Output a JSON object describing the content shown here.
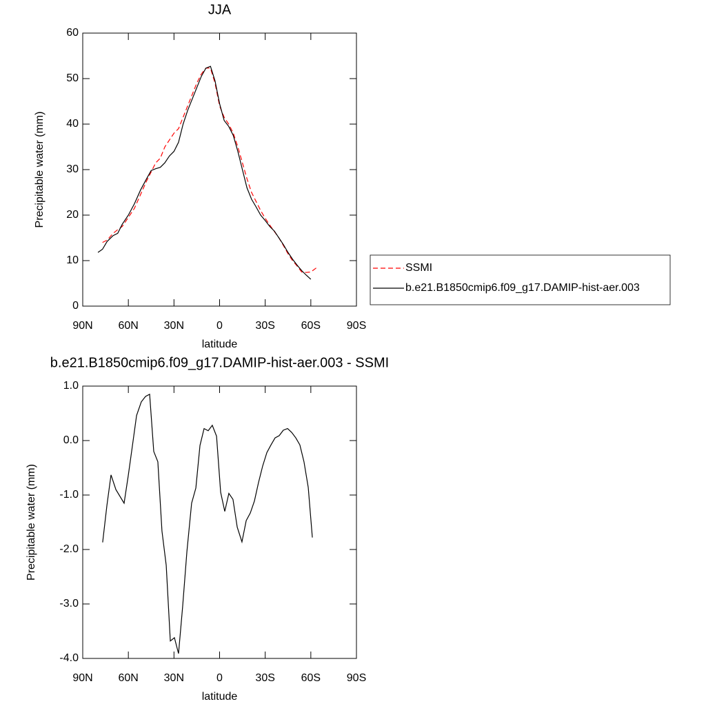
{
  "chart_data": [
    {
      "type": "line",
      "title": "JJA",
      "xlabel": "latitude",
      "ylabel": "Precipitable water (mm)",
      "xlim": [
        90,
        -90
      ],
      "ylim": [
        0,
        60
      ],
      "xticks": [
        {
          "value": 90,
          "label": "90N"
        },
        {
          "value": 60,
          "label": "60N"
        },
        {
          "value": 30,
          "label": "30N"
        },
        0,
        {
          "value": -30,
          "label": "30S"
        },
        {
          "value": -60,
          "label": "60S"
        },
        {
          "value": -90,
          "label": "90S"
        }
      ],
      "yticks": [
        0,
        10,
        20,
        30,
        40,
        50,
        60
      ],
      "legend": "right",
      "series": [
        {
          "name": "SSMI",
          "color": "#ff0000",
          "line_style": "dashed",
          "x": [
            77,
            74,
            70,
            67,
            64,
            60,
            56,
            52,
            48,
            45,
            42,
            39,
            36,
            33,
            30,
            27,
            24,
            21,
            18,
            15,
            12,
            9,
            6,
            3,
            0,
            -3,
            -6,
            -9,
            -12,
            -15,
            -18,
            -21,
            -24,
            -27,
            -30,
            -33,
            -36,
            -39,
            -42,
            -45,
            -48,
            -51,
            -54,
            -57,
            -60,
            -64
          ],
          "values": [
            14.0,
            14.5,
            16.0,
            16.8,
            17.5,
            19.5,
            21.5,
            24.5,
            27.5,
            29.5,
            31.5,
            32.5,
            35.0,
            36.5,
            38.0,
            39.0,
            41.5,
            44.0,
            46.5,
            49.0,
            51.0,
            52.3,
            52.3,
            49.0,
            44.0,
            41.5,
            40.0,
            38.0,
            35.0,
            31.5,
            28.0,
            25.0,
            23.0,
            21.0,
            19.3,
            17.8,
            16.4,
            15.0,
            13.3,
            11.5,
            10.0,
            8.8,
            7.5,
            7.4,
            7.5,
            8.5
          ]
        },
        {
          "name": "b.e21.B1850cmip6.f09_g17.DAMIP-hist-aer.003",
          "color": "#000000",
          "line_style": "solid",
          "x": [
            80,
            77,
            74,
            70,
            67,
            64,
            60,
            56,
            52,
            48,
            45,
            42,
            39,
            36,
            33,
            30,
            27,
            24,
            21,
            18,
            15,
            12,
            9,
            6,
            3,
            0,
            -3,
            -6,
            -9,
            -12,
            -15,
            -18,
            -21,
            -24,
            -27,
            -30,
            -33,
            -36,
            -39,
            -42,
            -45,
            -48,
            -51,
            -54,
            -57,
            -60
          ],
          "values": [
            11.8,
            12.5,
            14.2,
            15.5,
            16.0,
            18.0,
            20.0,
            22.5,
            25.5,
            28.0,
            29.8,
            30.2,
            30.5,
            31.5,
            33.0,
            34.0,
            36.0,
            40.0,
            43.0,
            45.5,
            48.0,
            50.5,
            52.3,
            52.7,
            49.5,
            44.5,
            40.8,
            39.5,
            37.5,
            34.0,
            30.0,
            26.0,
            23.5,
            21.8,
            20.0,
            18.8,
            17.5,
            16.5,
            15.0,
            13.5,
            11.8,
            10.3,
            9.0,
            7.8,
            6.8,
            5.9
          ]
        }
      ]
    },
    {
      "type": "line",
      "title": "b.e21.B1850cmip6.f09_g17.DAMIP-hist-aer.003 - SSMI",
      "xlabel": "latitude",
      "ylabel": "Precipitable water (mm)",
      "xlim": [
        90,
        -90
      ],
      "ylim": [
        -4,
        1
      ],
      "xticks": [
        {
          "value": 90,
          "label": "90N"
        },
        {
          "value": 60,
          "label": "60N"
        },
        {
          "value": 30,
          "label": "30N"
        },
        0,
        {
          "value": -30,
          "label": "30S"
        },
        {
          "value": -60,
          "label": "60S"
        },
        {
          "value": -90,
          "label": "90S"
        }
      ],
      "yticks": [
        {
          "value": -4,
          "label": "-4.0"
        },
        {
          "value": -3,
          "label": "-3.0"
        },
        {
          "value": -2,
          "label": "-2.0"
        },
        {
          "value": -1,
          "label": "-1.0"
        },
        {
          "value": 0,
          "label": "0.0"
        },
        {
          "value": 1,
          "label": "1.0"
        }
      ],
      "color": "#000000",
      "x": [
        76.9,
        74.1,
        71.4,
        68.2,
        62.8,
        60.1,
        57.4,
        54.6,
        51.5,
        48.7,
        46.0,
        43.3,
        40.6,
        37.9,
        35.1,
        32.4,
        29.7,
        27.0,
        24.3,
        21.5,
        18.4,
        15.6,
        12.9,
        10.2,
        7.5,
        4.8,
        2.0,
        -0.7,
        -3.4,
        -6.1,
        -8.8,
        -11.6,
        -14.7,
        -17.5,
        -20.2,
        -22.9,
        -25.6,
        -28.3,
        -31.1,
        -33.8,
        -36.5,
        -39.2,
        -41.9,
        -44.7,
        -47.4,
        -50.1,
        -52.8,
        -55.5,
        -58.3,
        -61.0
      ],
      "values": [
        -1.87,
        -1.19,
        -0.63,
        -0.9,
        -1.15,
        -0.65,
        -0.11,
        0.46,
        0.71,
        0.81,
        0.85,
        -0.2,
        -0.39,
        -1.66,
        -2.29,
        -3.68,
        -3.62,
        -3.91,
        -3.05,
        -2.04,
        -1.15,
        -0.87,
        -0.09,
        0.22,
        0.18,
        0.28,
        0.08,
        -0.95,
        -1.3,
        -0.97,
        -1.08,
        -1.59,
        -1.86,
        -1.47,
        -1.33,
        -1.11,
        -0.77,
        -0.47,
        -0.22,
        -0.08,
        0.05,
        0.09,
        0.19,
        0.22,
        0.15,
        0.05,
        -0.08,
        -0.39,
        -0.86,
        -1.78
      ]
    }
  ]
}
